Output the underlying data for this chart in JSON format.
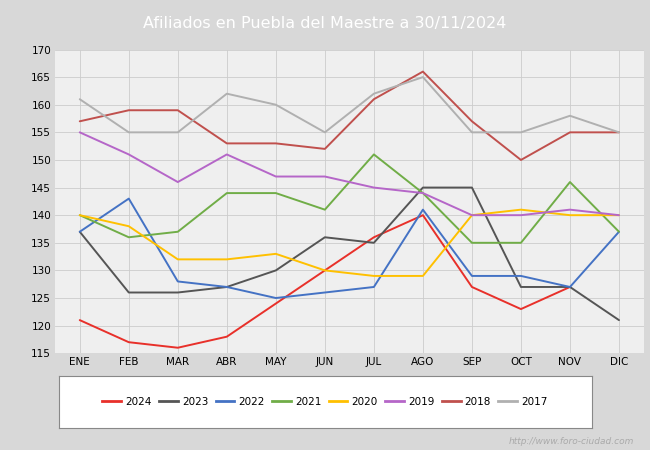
{
  "title": "Afiliados en Puebla del Maestre a 30/11/2024",
  "ylim": [
    115,
    170
  ],
  "yticks": [
    115,
    120,
    125,
    130,
    135,
    140,
    145,
    150,
    155,
    160,
    165,
    170
  ],
  "months": [
    "ENE",
    "FEB",
    "MAR",
    "ABR",
    "MAY",
    "JUN",
    "JUL",
    "AGO",
    "SEP",
    "OCT",
    "NOV",
    "DIC"
  ],
  "series": {
    "2024": {
      "color": "#e8302a",
      "data": [
        121,
        117,
        116,
        118,
        124,
        130,
        136,
        140,
        127,
        123,
        127,
        null
      ]
    },
    "2023": {
      "color": "#555555",
      "data": [
        137,
        126,
        126,
        127,
        130,
        136,
        135,
        145,
        145,
        127,
        127,
        121
      ]
    },
    "2022": {
      "color": "#4472c4",
      "data": [
        137,
        143,
        128,
        127,
        125,
        126,
        127,
        141,
        129,
        129,
        127,
        137
      ]
    },
    "2021": {
      "color": "#70ad47",
      "data": [
        140,
        136,
        137,
        144,
        144,
        141,
        151,
        144,
        135,
        135,
        146,
        137
      ]
    },
    "2020": {
      "color": "#ffc000",
      "data": [
        140,
        138,
        132,
        132,
        133,
        130,
        129,
        129,
        140,
        141,
        140,
        140
      ]
    },
    "2019": {
      "color": "#b566c8",
      "data": [
        155,
        151,
        146,
        151,
        147,
        147,
        145,
        144,
        140,
        140,
        141,
        140
      ]
    },
    "2018": {
      "color": "#c0504d",
      "data": [
        157,
        159,
        159,
        153,
        153,
        152,
        161,
        166,
        157,
        150,
        155,
        155
      ]
    },
    "2017": {
      "color": "#b0b0b0",
      "data": [
        161,
        155,
        155,
        162,
        160,
        155,
        162,
        165,
        155,
        155,
        158,
        155
      ]
    }
  },
  "legend_order": [
    "2024",
    "2023",
    "2022",
    "2021",
    "2020",
    "2019",
    "2018",
    "2017"
  ],
  "grid_color": "#cccccc",
  "plot_bg": "#efefef",
  "header_bg": "#4a7fc1",
  "header_text_color": "#ffffff",
  "watermark": "http://www.foro-ciudad.com",
  "watermark_color": "#aaaaaa",
  "fig_bg": "#d8d8d8"
}
